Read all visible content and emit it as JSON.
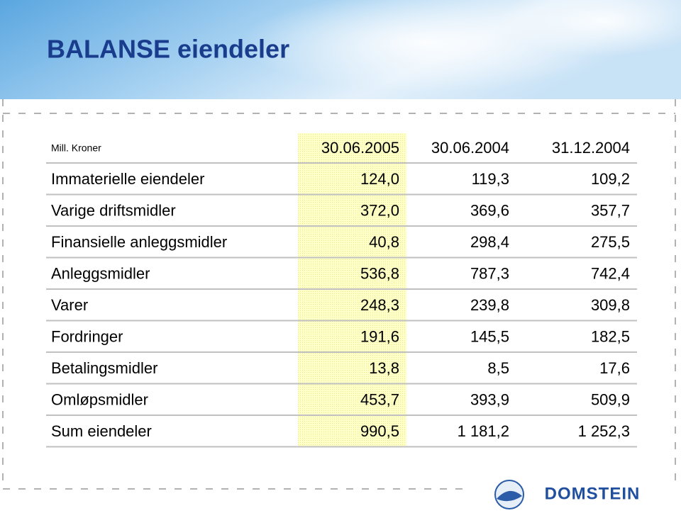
{
  "header": {
    "title": "BALANSE eiendeler"
  },
  "table": {
    "columns": [
      "Mill. Kroner",
      "30.06.2005",
      "30.06.2004",
      "31.12.2004"
    ],
    "rows": [
      [
        "Immaterielle eiendeler",
        "124,0",
        "119,3",
        "109,2"
      ],
      [
        "Varige driftsmidler",
        "372,0",
        "369,6",
        "357,7"
      ],
      [
        "Finansielle anleggsmidler",
        "40,8",
        "298,4",
        "275,5"
      ],
      [
        "Anleggsmidler",
        "536,8",
        "787,3",
        "742,4"
      ],
      [
        "Varer",
        "248,3",
        "239,8",
        "309,8"
      ],
      [
        "Fordringer",
        "191,6",
        "145,5",
        "182,5"
      ],
      [
        "Betalingsmidler",
        "13,8",
        "8,5",
        "17,6"
      ],
      [
        "Omløpsmidler",
        "453,7",
        "393,9",
        "509,9"
      ],
      [
        "Sum eiendeler",
        "990,5",
        "1 181,2",
        "1 252,3"
      ]
    ]
  },
  "footer": {
    "logo": "DOMSTEIN"
  }
}
